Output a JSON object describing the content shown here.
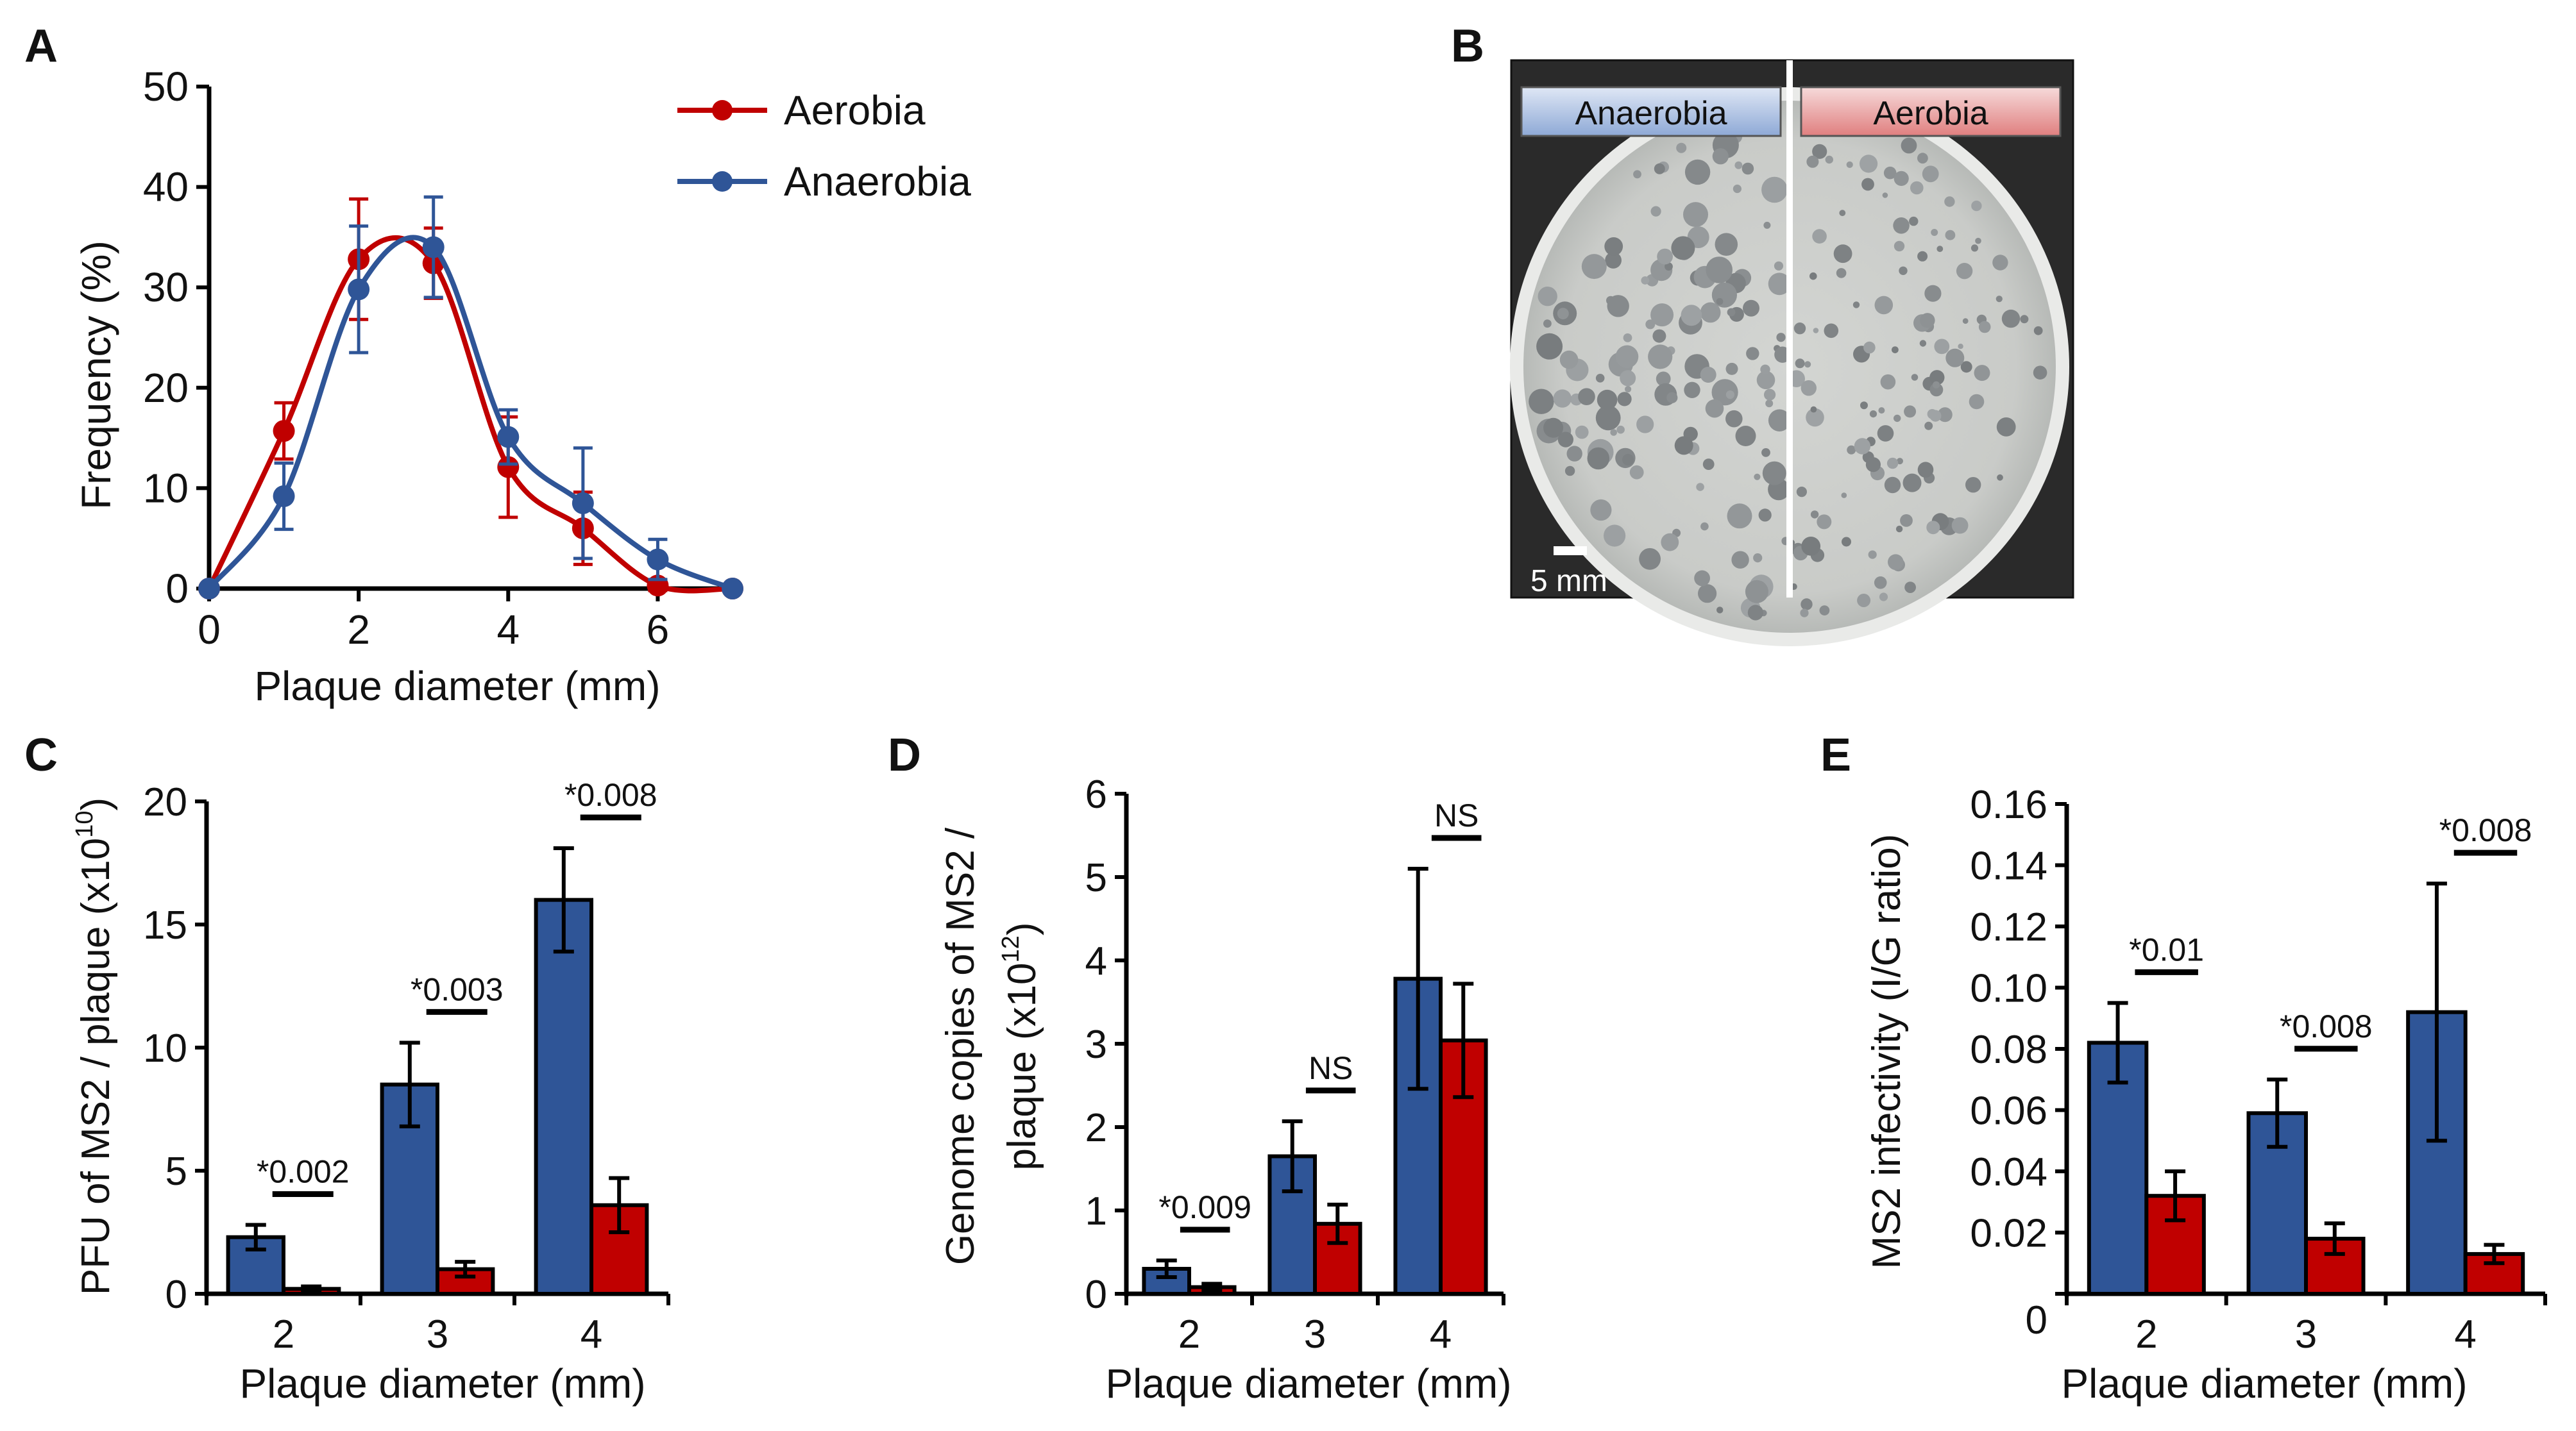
{
  "colors": {
    "anaerobia": "#2F5597",
    "aerobia": "#C00000",
    "axis": "#000000",
    "dish_bg": "#2a2a2a"
  },
  "panel_labels": [
    "A",
    "B",
    "C",
    "D",
    "E"
  ],
  "chart_data": [
    {
      "id": "A",
      "type": "line",
      "panel_label": "A",
      "xlabel": "Plaque diameter (mm)",
      "ylabel": "Frequency (%)",
      "xlim": [
        0,
        7
      ],
      "ylim": [
        0,
        50
      ],
      "xticks": [
        0,
        2,
        4,
        6
      ],
      "yticks": [
        0,
        10,
        20,
        30,
        40,
        50
      ],
      "series": [
        {
          "name": "Aerobia",
          "color_key": "aerobia",
          "x": [
            0,
            1,
            2,
            3,
            4,
            5,
            6,
            7
          ],
          "values": [
            0,
            15.7,
            32.8,
            32.4,
            12.1,
            6.0,
            0.3,
            0
          ],
          "errors": [
            0,
            2.8,
            6.0,
            3.5,
            5.0,
            3.6,
            0.5,
            0
          ]
        },
        {
          "name": "Anaerobia",
          "color_key": "anaerobia",
          "x": [
            0,
            1,
            2,
            3,
            4,
            5,
            6,
            7
          ],
          "values": [
            0,
            9.2,
            29.8,
            34.0,
            15.1,
            8.5,
            2.9,
            0
          ],
          "errors": [
            0,
            3.3,
            6.3,
            5.0,
            2.7,
            5.5,
            2.0,
            0
          ]
        }
      ],
      "legend": [
        "Aerobia",
        "Anaerobia"
      ],
      "legend_position": "top-right"
    },
    {
      "id": "C",
      "type": "bar",
      "panel_label": "C",
      "categories": [
        "2",
        "3",
        "4"
      ],
      "xlabel": "Plaque diameter (mm)",
      "ylabel": "PFU of MS2 / plaque (x10",
      "ylabel_exponent": "10",
      "ylabel_suffix": ")",
      "ylim": [
        0,
        20
      ],
      "yticks": [
        0,
        5,
        10,
        15,
        20
      ],
      "series": [
        {
          "name": "Anaerobia",
          "color_key": "anaerobia",
          "values": [
            2.3,
            8.5,
            16.0
          ],
          "errors": [
            0.5,
            1.7,
            2.1
          ]
        },
        {
          "name": "Aerobia",
          "color_key": "aerobia",
          "values": [
            0.2,
            1.0,
            3.6
          ],
          "errors": [
            0.1,
            0.3,
            1.1
          ]
        }
      ],
      "annotations": [
        "*0.002",
        "*0.003",
        "*0.008"
      ]
    },
    {
      "id": "D",
      "type": "bar",
      "panel_label": "D",
      "categories": [
        "2",
        "3",
        "4"
      ],
      "xlabel": "Plaque diameter (mm)",
      "ylabel_line1": "Genome copies of MS2 /",
      "ylabel_line2": "plaque (x10",
      "ylabel_exponent": "12",
      "ylabel_suffix": ")",
      "ylim": [
        0,
        6
      ],
      "yticks": [
        0,
        1,
        2,
        3,
        4,
        5,
        6
      ],
      "series": [
        {
          "name": "Anaerobia",
          "color_key": "anaerobia",
          "values": [
            0.3,
            1.65,
            3.78
          ],
          "errors": [
            0.1,
            0.42,
            1.32
          ]
        },
        {
          "name": "Aerobia",
          "color_key": "aerobia",
          "values": [
            0.08,
            0.84,
            3.04
          ],
          "errors": [
            0.04,
            0.23,
            0.68
          ]
        }
      ],
      "annotations": [
        "*0.009",
        "NS",
        "NS"
      ]
    },
    {
      "id": "E",
      "type": "bar",
      "panel_label": "E",
      "categories": [
        "2",
        "3",
        "4"
      ],
      "xlabel": "Plaque diameter (mm)",
      "ylabel": "MS2 infectivity (I/G ratio)",
      "ylim": [
        0,
        0.16
      ],
      "yticks": [
        "0",
        "0.02",
        "0.04",
        "0.06",
        "0.08",
        "0.10",
        "0.12",
        "0.14",
        "0.16"
      ],
      "series": [
        {
          "name": "Anaerobia",
          "color_key": "anaerobia",
          "values": [
            0.082,
            0.059,
            0.092
          ],
          "errors": [
            0.013,
            0.011,
            0.042
          ]
        },
        {
          "name": "Aerobia",
          "color_key": "aerobia",
          "values": [
            0.032,
            0.018,
            0.013
          ],
          "errors": [
            0.008,
            0.005,
            0.003
          ]
        }
      ],
      "annotations": [
        "*0.01",
        "*0.008",
        "*0.008"
      ]
    }
  ],
  "photo": {
    "panel_label": "B",
    "left_label": "Anaerobia",
    "right_label": "Aerobia",
    "scale_label": "5 mm"
  }
}
